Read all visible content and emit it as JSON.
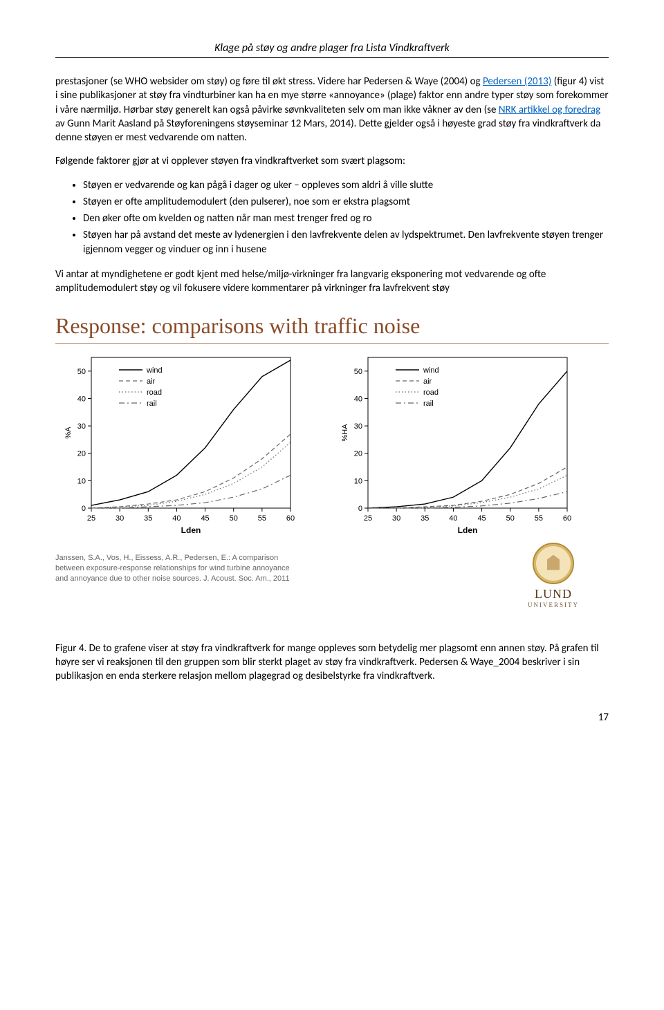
{
  "header": {
    "title": "Klage på støy og andre plager fra Lista Vindkraftverk"
  },
  "body": {
    "p1a": "prestasjoner (se WHO websider om støy) og føre til økt stress. Videre har Pedersen & Waye (2004) og ",
    "p1_link1": "Pedersen (2013)",
    "p1b": " (figur 4) vist i sine publikasjoner at støy fra vindturbiner kan ha en mye større «annoyance» (plage) faktor enn andre typer støy som forekommer i våre nærmiljø. Hørbar støy generelt kan også påvirke søvnkvaliteten selv om man ikke våkner av den (se ",
    "p1_link2": "NRK artikkel og foredrag",
    "p1c": " av Gunn Marit Aasland på Støyforeningens støyseminar 12 Mars, 2014). Dette gjelder også i høyeste grad støy fra vindkraftverk da denne støyen er mest vedvarende om natten.",
    "p2": "Følgende faktorer gjør at vi opplever støyen fra vindkraftverket som svært plagsom:",
    "bullets": [
      "Støyen er vedvarende og kan pågå i dager og uker – oppleves som aldri å ville slutte",
      "Støyen er ofte amplitudemodulert (den pulserer), noe som er ekstra plagsomt",
      "Den øker ofte om kvelden og natten når man mest trenger fred og ro",
      "Støyen har på avstand det meste av lydenergien i den lavfrekvente delen av lydspektrumet. Den lavfrekvente støyen trenger igjennom vegger og vinduer og inn i husene"
    ],
    "p3": "Vi antar at myndighetene er godt kjent med helse/miljø-virkninger fra langvarig eksponering mot vedvarende og ofte amplitudemodulert støy og vil fokusere videre kommentarer på virkninger fra lavfrekvent støy"
  },
  "chart": {
    "title": "Response: comparisons with traffic noise",
    "hr_color": "#b98a6a",
    "title_color": "#8a4a27",
    "title_fontsize": 32,
    "citation": "Janssen, S.A., Vos, H., Eissess, A.R., Pedersen, E.: A comparison between exposure-response relationships for wind turbine annoyance and annoyance due to other noise sources. J. Acoust. Soc. Am., 2011",
    "lund": {
      "name": "LUND",
      "sub": "UNIVERSITY"
    },
    "plots": [
      {
        "ylabel": "%A",
        "xlabel": "Lden",
        "xlim": [
          25,
          60
        ],
        "ylim": [
          0,
          55
        ],
        "xticks": [
          25,
          30,
          35,
          40,
          45,
          50,
          55,
          60
        ],
        "yticks": [
          0,
          10,
          20,
          30,
          40,
          50
        ],
        "legend": [
          "wind",
          "air",
          "road",
          "rail"
        ],
        "series": {
          "wind": {
            "style": "solid",
            "color": "#000",
            "width": 1.4,
            "x": [
              25,
              30,
              35,
              40,
              45,
              50,
              55,
              60
            ],
            "y": [
              1,
              3,
              6,
              12,
              22,
              36,
              48,
              54
            ]
          },
          "air": {
            "style": "dash",
            "color": "#666",
            "width": 1.2,
            "x": [
              25,
              30,
              35,
              40,
              45,
              50,
              55,
              60
            ],
            "y": [
              0,
              0.5,
              1.5,
              3,
              6,
              11,
              18,
              27
            ]
          },
          "road": {
            "style": "dot",
            "color": "#666",
            "width": 1.2,
            "x": [
              25,
              30,
              35,
              40,
              45,
              50,
              55,
              60
            ],
            "y": [
              0,
              0.5,
              1,
              2.5,
              5,
              9,
              15,
              24
            ]
          },
          "rail": {
            "style": "dashdot",
            "color": "#666",
            "width": 1.2,
            "x": [
              25,
              30,
              35,
              40,
              45,
              50,
              55,
              60
            ],
            "y": [
              0,
              0,
              0.5,
              1,
              2,
              4,
              7,
              12
            ]
          }
        }
      },
      {
        "ylabel": "%HA",
        "xlabel": "Lden",
        "xlim": [
          25,
          60
        ],
        "ylim": [
          0,
          55
        ],
        "xticks": [
          25,
          30,
          35,
          40,
          45,
          50,
          55,
          60
        ],
        "yticks": [
          0,
          10,
          20,
          30,
          40,
          50
        ],
        "legend": [
          "wind",
          "air",
          "road",
          "rail"
        ],
        "series": {
          "wind": {
            "style": "solid",
            "color": "#000",
            "width": 1.4,
            "x": [
              25,
              30,
              35,
              40,
              45,
              50,
              55,
              60
            ],
            "y": [
              0,
              0.5,
              1.5,
              4,
              10,
              22,
              38,
              50
            ]
          },
          "air": {
            "style": "dash",
            "color": "#666",
            "width": 1.2,
            "x": [
              25,
              30,
              35,
              40,
              45,
              50,
              55,
              60
            ],
            "y": [
              0,
              0,
              0.5,
              1,
              2.5,
              5,
              9,
              15
            ]
          },
          "road": {
            "style": "dot",
            "color": "#666",
            "width": 1.2,
            "x": [
              25,
              30,
              35,
              40,
              45,
              50,
              55,
              60
            ],
            "y": [
              0,
              0,
              0.3,
              0.8,
              2,
              4,
              7,
              12
            ]
          },
          "rail": {
            "style": "dashdot",
            "color": "#666",
            "width": 1.2,
            "x": [
              25,
              30,
              35,
              40,
              45,
              50,
              55,
              60
            ],
            "y": [
              0,
              0,
              0,
              0.3,
              0.8,
              1.8,
              3.5,
              6
            ]
          }
        }
      }
    ]
  },
  "caption": "Figur 4. De to grafene viser at støy fra vindkraftverk for mange oppleves som betydelig mer plagsomt enn annen støy. På grafen til høyre ser vi reaksjonen til den gruppen som blir sterkt plaget av støy fra vindkraftverk. Pedersen & Waye_2004 beskriver i sin publikasjon en enda sterkere relasjon mellom plagegrad og desibelstyrke fra vindkraftverk.",
  "page_number": "17"
}
